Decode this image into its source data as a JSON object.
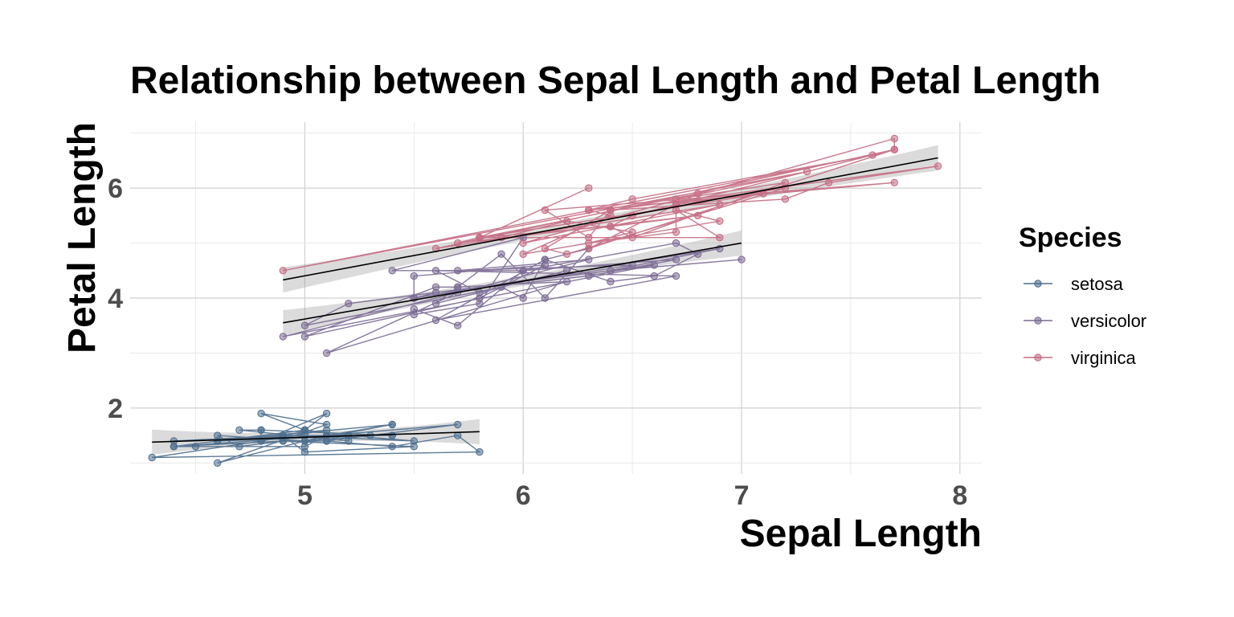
{
  "chart_data": {
    "type": "scatter",
    "title": "Relationship between Sepal Length and Petal Length",
    "xlabel": "Sepal Length",
    "ylabel": "Petal Length",
    "xlim": [
      4.2,
      8.1
    ],
    "ylim": [
      0.8,
      7.2
    ],
    "xticks": [
      5,
      6,
      7,
      8
    ],
    "yticks": [
      2,
      4,
      6
    ],
    "grid": true,
    "legend": {
      "title": "Species",
      "placement": "right"
    },
    "colors": {
      "setosa": "#4c6d8c",
      "versicolor": "#7a6a94",
      "virginica": "#c46b83"
    },
    "series": [
      {
        "name": "setosa",
        "x": [
          5.1,
          4.9,
          4.7,
          4.6,
          5.0,
          5.4,
          4.6,
          5.0,
          4.4,
          4.9,
          5.4,
          4.8,
          4.8,
          4.3,
          5.8,
          5.7,
          5.4,
          5.1,
          5.7,
          5.1,
          5.4,
          5.1,
          4.6,
          5.1,
          4.8,
          5.0,
          5.0,
          5.2,
          5.2,
          4.7,
          4.8,
          5.4,
          5.2,
          5.5,
          4.9,
          5.0,
          5.5,
          4.9,
          4.4,
          5.1,
          5.0,
          4.5,
          4.4,
          5.0,
          5.1,
          4.8,
          5.1,
          4.6,
          5.3,
          5.0
        ],
        "y": [
          1.4,
          1.4,
          1.3,
          1.5,
          1.4,
          1.7,
          1.4,
          1.5,
          1.4,
          1.5,
          1.5,
          1.6,
          1.4,
          1.1,
          1.2,
          1.5,
          1.3,
          1.4,
          1.7,
          1.5,
          1.7,
          1.5,
          1.0,
          1.7,
          1.9,
          1.6,
          1.6,
          1.5,
          1.4,
          1.6,
          1.6,
          1.5,
          1.5,
          1.4,
          1.5,
          1.2,
          1.3,
          1.4,
          1.3,
          1.5,
          1.3,
          1.3,
          1.3,
          1.6,
          1.9,
          1.4,
          1.6,
          1.4,
          1.5,
          1.4
        ],
        "fit": {
          "x": [
            4.3,
            5.8
          ],
          "y": [
            1.38,
            1.57
          ]
        }
      },
      {
        "name": "versicolor",
        "x": [
          7.0,
          6.4,
          6.9,
          5.5,
          6.5,
          5.7,
          6.3,
          4.9,
          6.6,
          5.2,
          5.0,
          5.9,
          6.0,
          6.1,
          5.6,
          6.7,
          5.6,
          5.8,
          6.2,
          5.6,
          5.9,
          6.1,
          6.3,
          6.1,
          6.4,
          6.6,
          6.8,
          6.7,
          6.0,
          5.7,
          5.5,
          5.5,
          5.8,
          6.0,
          5.4,
          6.0,
          6.7,
          6.3,
          5.6,
          5.5,
          5.5,
          6.1,
          5.8,
          5.0,
          5.6,
          5.7,
          5.7,
          6.2,
          5.1,
          5.7
        ],
        "y": [
          4.7,
          4.5,
          4.9,
          4.0,
          4.6,
          4.5,
          4.7,
          3.3,
          4.6,
          3.9,
          3.5,
          4.2,
          4.0,
          4.7,
          3.6,
          4.4,
          4.5,
          4.1,
          4.5,
          3.9,
          4.8,
          4.0,
          4.9,
          4.7,
          4.3,
          4.4,
          4.8,
          5.0,
          4.5,
          3.5,
          3.8,
          3.7,
          3.9,
          5.1,
          4.5,
          4.5,
          4.7,
          4.4,
          4.1,
          4.0,
          4.4,
          4.6,
          4.0,
          3.3,
          4.2,
          4.2,
          4.2,
          4.3,
          3.0,
          4.1
        ],
        "fit": {
          "x": [
            4.9,
            7.0
          ],
          "y": [
            3.55,
            5.0
          ]
        }
      },
      {
        "name": "virginica",
        "x": [
          6.3,
          5.8,
          7.1,
          6.3,
          6.5,
          7.6,
          4.9,
          7.3,
          6.7,
          7.2,
          6.5,
          6.4,
          6.8,
          5.7,
          5.8,
          6.4,
          6.5,
          7.7,
          7.7,
          6.0,
          6.9,
          5.6,
          7.7,
          6.3,
          6.7,
          7.2,
          6.2,
          6.1,
          6.4,
          7.2,
          7.4,
          7.9,
          6.4,
          6.3,
          6.1,
          7.7,
          6.3,
          6.4,
          6.0,
          6.9,
          6.7,
          6.9,
          5.8,
          6.8,
          6.7,
          6.7,
          6.3,
          6.5,
          6.2,
          5.9
        ],
        "y": [
          6.0,
          5.1,
          5.9,
          5.6,
          5.8,
          6.6,
          4.5,
          6.3,
          5.8,
          6.1,
          5.1,
          5.3,
          5.5,
          5.0,
          5.1,
          5.3,
          5.5,
          6.7,
          6.9,
          5.0,
          5.7,
          4.9,
          6.7,
          4.9,
          5.7,
          6.0,
          4.8,
          4.9,
          5.6,
          5.8,
          6.1,
          6.4,
          5.6,
          5.1,
          5.6,
          6.1,
          5.6,
          5.5,
          4.8,
          5.4,
          5.6,
          5.1,
          5.1,
          5.9,
          5.7,
          5.2,
          5.0,
          5.2,
          5.4,
          5.1
        ],
        "fit": {
          "x": [
            4.9,
            7.9
          ],
          "y": [
            4.33,
            6.55
          ]
        }
      }
    ]
  }
}
